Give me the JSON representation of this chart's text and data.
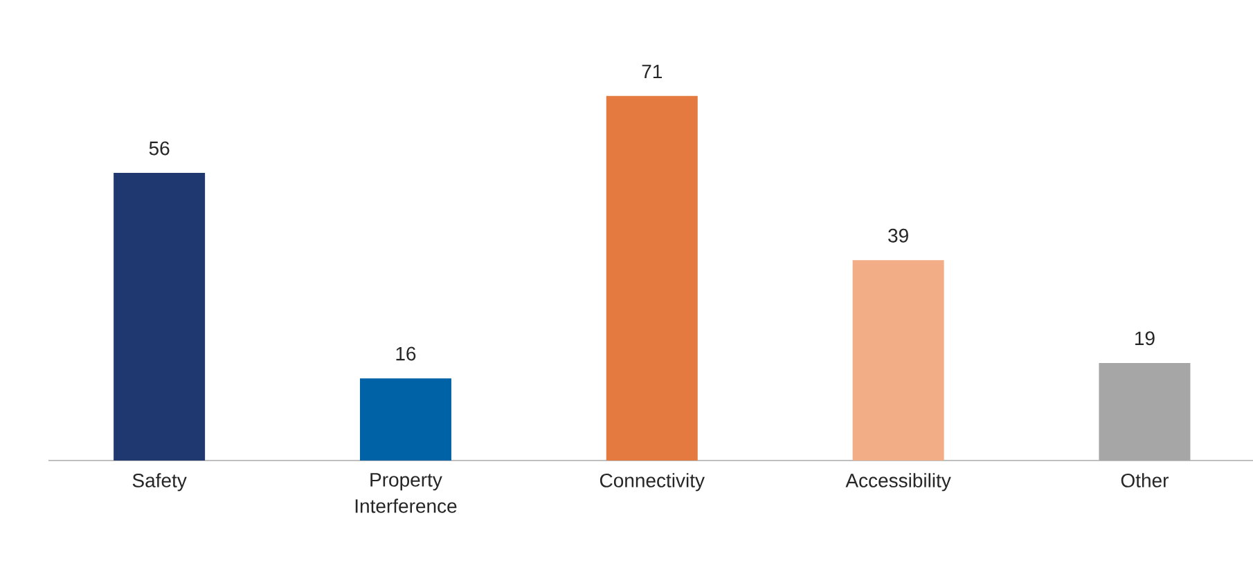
{
  "chart_data": {
    "type": "bar",
    "categories": [
      "Safety",
      "Property Interference",
      "Connectivity",
      "Accessibility",
      "Other"
    ],
    "values": [
      56,
      16,
      71,
      39,
      19
    ],
    "colors": [
      "#1f3870",
      "#0062a6",
      "#e47a40",
      "#f2ad86",
      "#a6a6a6"
    ],
    "data_labels": true
  }
}
